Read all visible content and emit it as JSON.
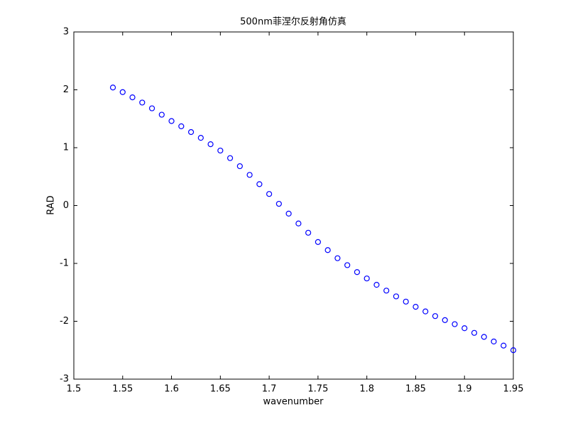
{
  "chart_data": {
    "type": "scatter",
    "title": "500nm菲涅尔反射角仿真",
    "x_label": "wavenumber",
    "y_label": "RAD",
    "x": [
      1.54,
      1.55,
      1.56,
      1.57,
      1.58,
      1.59,
      1.6,
      1.61,
      1.62,
      1.63,
      1.64,
      1.65,
      1.66,
      1.67,
      1.68,
      1.69,
      1.7,
      1.71,
      1.72,
      1.73,
      1.74,
      1.75,
      1.76,
      1.77,
      1.78,
      1.79,
      1.8,
      1.81,
      1.82,
      1.83,
      1.84,
      1.85,
      1.86,
      1.87,
      1.88,
      1.89,
      1.9,
      1.91,
      1.92,
      1.93,
      1.94,
      1.95
    ],
    "values": [
      2.04,
      1.96,
      1.87,
      1.78,
      1.68,
      1.57,
      1.46,
      1.37,
      1.27,
      1.17,
      1.06,
      0.95,
      0.82,
      0.68,
      0.53,
      0.37,
      0.2,
      0.03,
      -0.14,
      -0.31,
      -0.47,
      -0.63,
      -0.77,
      -0.91,
      -1.03,
      -1.15,
      -1.26,
      -1.37,
      -1.47,
      -1.57,
      -1.66,
      -1.75,
      -1.83,
      -1.91,
      -1.98,
      -2.05,
      -2.12,
      -2.2,
      -2.27,
      -2.35,
      -2.42,
      -2.5
    ],
    "color": "#0000ff",
    "xlim": [
      1.5,
      1.95
    ],
    "xticks": [
      1.5,
      1.55,
      1.6,
      1.65,
      1.7,
      1.75,
      1.8,
      1.85,
      1.9,
      1.95
    ],
    "ylim": [
      -3,
      3
    ],
    "yticks": [
      -3,
      -2,
      -1,
      0,
      1,
      2,
      3
    ]
  }
}
